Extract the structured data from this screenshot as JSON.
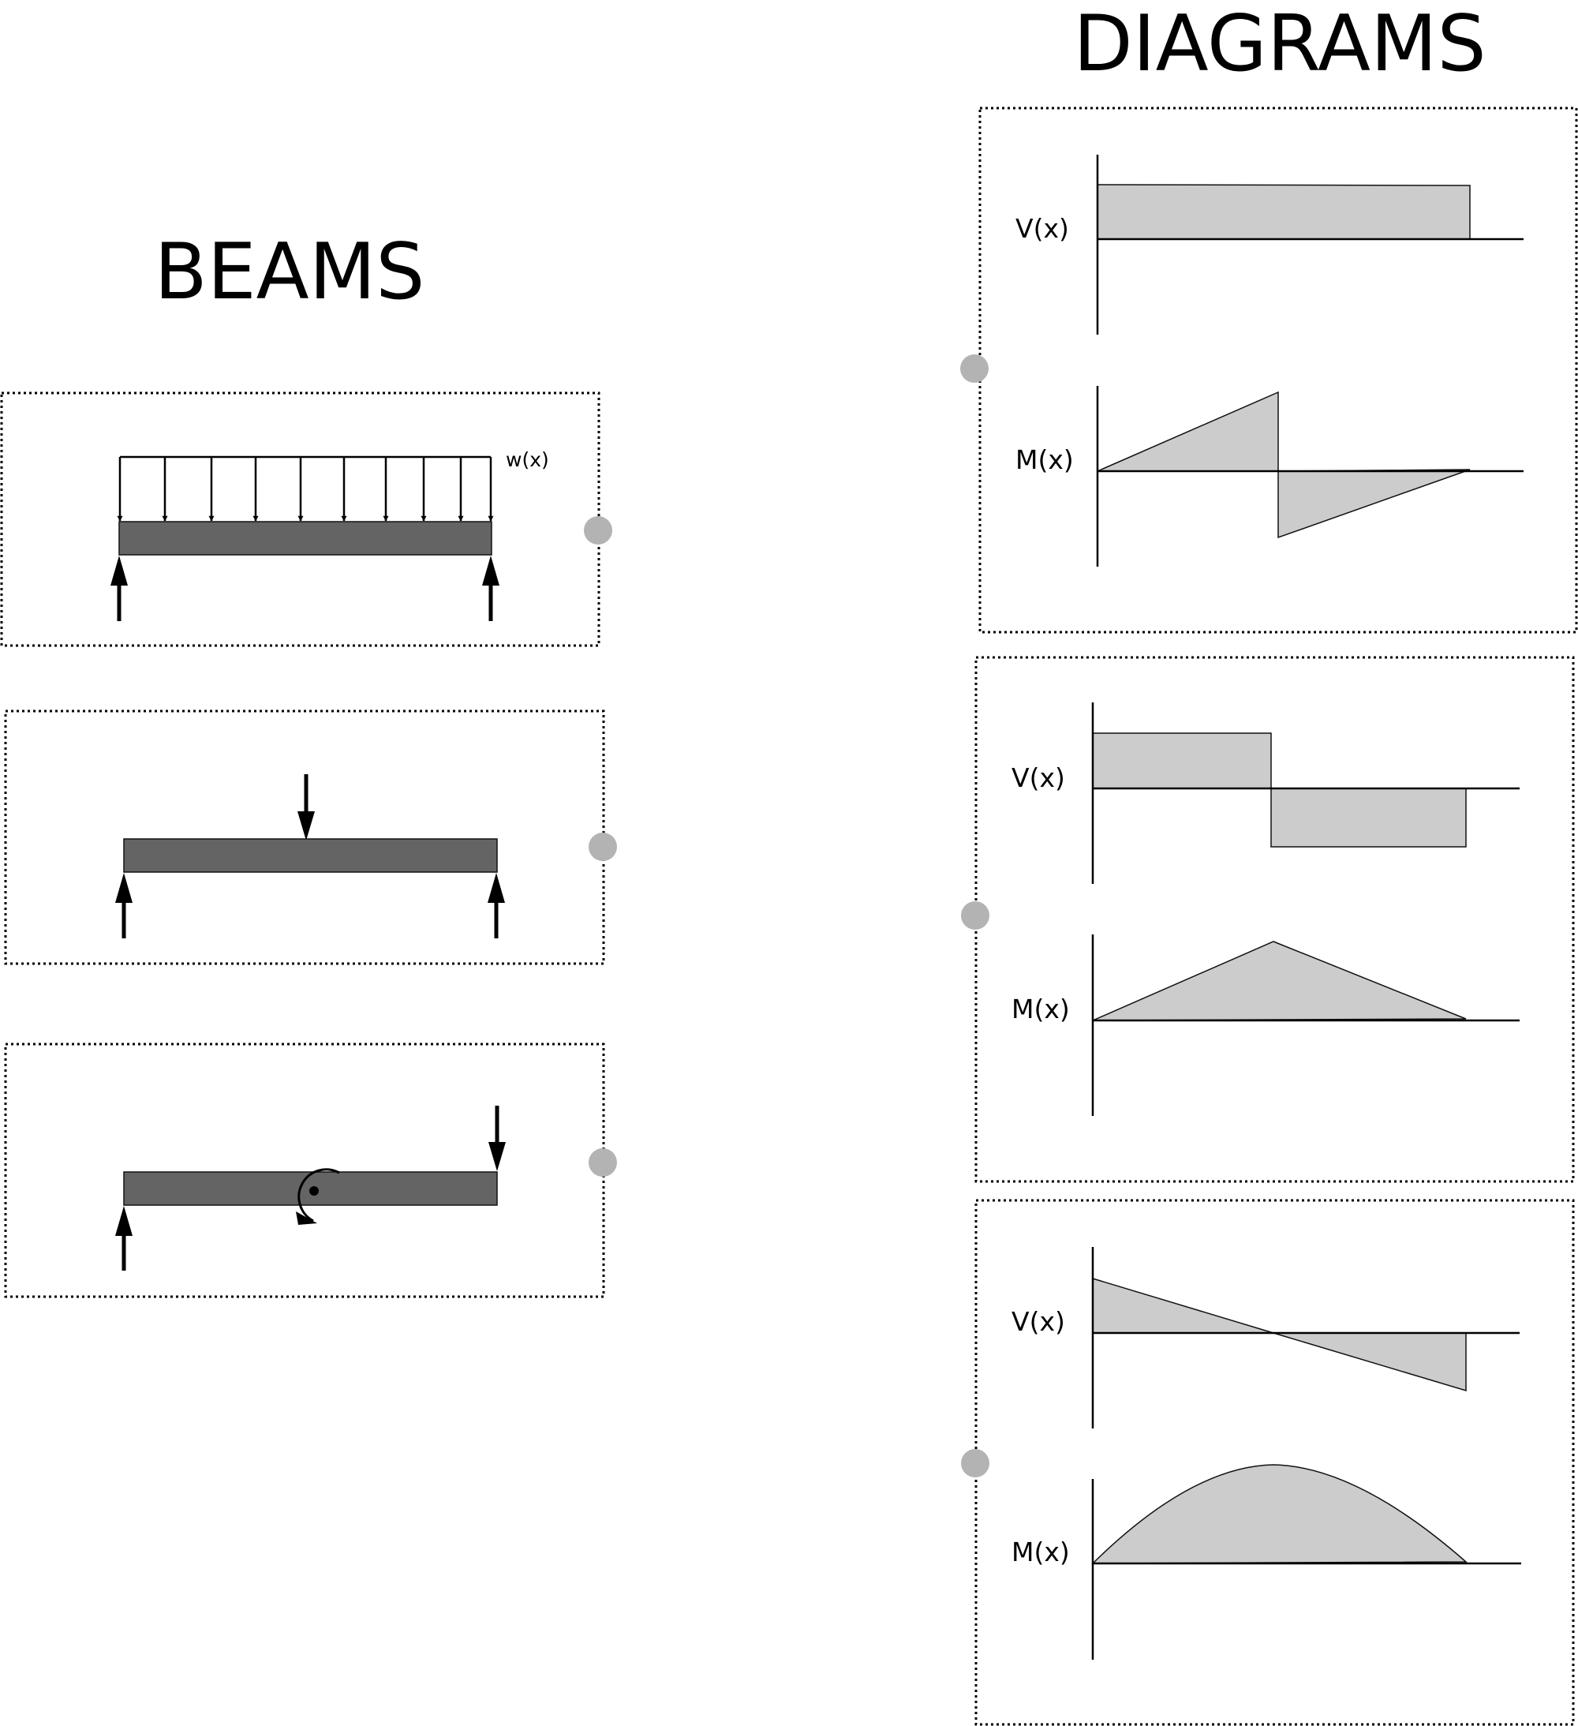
{
  "headings": {
    "beams": "BEAMS",
    "diagrams": "DIAGRAMS"
  },
  "beams": [
    {
      "loading": "uniform-distributed-load",
      "load_label": "w(x)",
      "supports": "simply-supported"
    },
    {
      "loading": "midspan-point-load",
      "supports": "simply-supported"
    },
    {
      "loading": "applied-moment-and-end-point-load",
      "supports": "left-end-support"
    }
  ],
  "diagrams": [
    {
      "shear_label": "V(x)",
      "moment_label": "M(x)",
      "shear_shape": "constant-positive",
      "moment_shape": "linear-rise-then-jump-to-negative-then-linear-return"
    },
    {
      "shear_label": "V(x)",
      "moment_label": "M(x)",
      "shear_shape": "positive-step-then-negative-step",
      "moment_shape": "triangular-peak-at-midspan"
    },
    {
      "shear_label": "V(x)",
      "moment_label": "M(x)",
      "shear_shape": "linear-positive-to-negative",
      "moment_shape": "parabolic-peak-at-midspan"
    }
  ],
  "colors": {
    "beam_fill": "#646464",
    "diagram_fill": "#cccccc",
    "knob_fill": "#b3b3b3",
    "frame_stroke": "#000000"
  },
  "icons": {
    "support_reaction": "up-arrow",
    "point_load": "down-arrow",
    "applied_moment": "curved-arrow",
    "connector": "circle-knob"
  }
}
